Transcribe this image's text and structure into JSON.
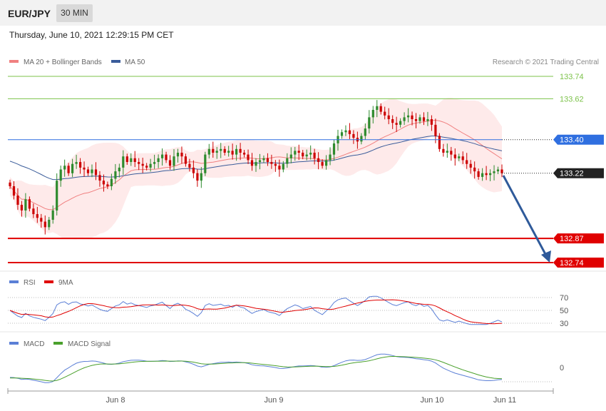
{
  "header": {
    "symbol": "EUR/JPY",
    "timeframe": "30 MIN",
    "datetime": "Thursday, June 10, 2021 12:29:15 PM CET"
  },
  "colors": {
    "ma20": "#f08080",
    "bands_fill": "#fde3e3",
    "ma50": "#3a5c9a",
    "bull": "#2e8b2e",
    "bear": "#cc0000",
    "resistance": "#7cc24a",
    "pivot": "#2f6fe0",
    "support": "#e00000",
    "current": "#222222",
    "arrow": "#2f5a9a",
    "rsi": "#5b7fd6",
    "rsi_ma": "#e00000",
    "macd": "#5b7fd6",
    "macd_signal": "#4aa02c"
  },
  "chart_data": [
    {
      "type": "candlestick",
      "title": "EUR/JPY",
      "legend": [
        {
          "name": "MA 20 + Bollinger Bands",
          "color": "#f08080"
        },
        {
          "name": "MA 50",
          "color": "#3a5c9a"
        }
      ],
      "legend_position": "top-left",
      "credit": "Research © 2021 Trading Central",
      "x_ticks": [
        "Jun 8",
        "Jun 9",
        "Jun 10",
        "Jun 11"
      ],
      "ylim": [
        132.7,
        133.8
      ],
      "levels": [
        {
          "value": 133.74,
          "label": "133.74",
          "kind": "resistance"
        },
        {
          "value": 133.62,
          "label": "133.62",
          "kind": "resistance"
        },
        {
          "value": 133.4,
          "label": "133.40",
          "kind": "pivot"
        },
        {
          "value": 133.22,
          "label": "133.22",
          "kind": "current"
        },
        {
          "value": 132.87,
          "label": "132.87",
          "kind": "support"
        },
        {
          "value": 132.74,
          "label": "132.74",
          "kind": "support"
        }
      ],
      "closes": [
        133.15,
        133.1,
        133.05,
        133.02,
        133.08,
        133.03,
        133.0,
        132.98,
        132.96,
        132.93,
        132.97,
        133.02,
        133.18,
        133.24,
        133.26,
        133.22,
        133.27,
        133.28,
        133.25,
        133.24,
        133.22,
        133.24,
        133.21,
        133.18,
        133.16,
        133.15,
        133.19,
        133.23,
        133.25,
        133.31,
        133.28,
        133.3,
        133.28,
        133.27,
        133.26,
        133.25,
        133.27,
        133.28,
        133.3,
        133.32,
        133.29,
        133.26,
        133.31,
        133.33,
        133.31,
        133.27,
        133.25,
        133.22,
        133.18,
        133.22,
        133.32,
        133.35,
        133.33,
        133.34,
        133.35,
        133.33,
        133.34,
        133.32,
        133.35,
        133.33,
        133.32,
        133.29,
        133.26,
        133.28,
        133.29,
        133.3,
        133.28,
        133.27,
        133.26,
        133.24,
        133.27,
        133.3,
        133.32,
        133.34,
        133.33,
        133.31,
        133.32,
        133.33,
        133.3,
        133.28,
        133.26,
        133.29,
        133.32,
        133.38,
        133.42,
        133.44,
        133.45,
        133.43,
        133.41,
        133.39,
        133.42,
        133.46,
        133.52,
        133.56,
        133.58,
        133.55,
        133.53,
        133.51,
        133.49,
        133.48,
        133.5,
        133.52,
        133.53,
        133.51,
        133.5,
        133.52,
        133.5,
        133.51,
        133.48,
        133.42,
        133.35,
        133.33,
        133.34,
        133.32,
        133.3,
        133.31,
        133.29,
        133.27,
        133.25,
        133.23,
        133.2,
        133.22,
        133.21,
        133.22,
        133.23,
        133.24,
        133.22
      ],
      "ma50_start": 133.29
    },
    {
      "type": "line",
      "legend": [
        {
          "name": "RSI",
          "color": "#5b7fd6"
        },
        {
          "name": "9MA",
          "color": "#e00000"
        }
      ],
      "ylim": [
        25,
        80
      ],
      "y_ticks": [
        "70",
        "50",
        "30"
      ],
      "y_tick_values": [
        70,
        50,
        30
      ]
    },
    {
      "type": "line",
      "legend": [
        {
          "name": "MACD",
          "color": "#5b7fd6"
        },
        {
          "name": "MACD Signal",
          "color": "#4aa02c"
        }
      ],
      "ylim": [
        -0.12,
        0.07
      ],
      "y_ticks": [
        "0"
      ],
      "y_tick_values": [
        0
      ]
    }
  ]
}
